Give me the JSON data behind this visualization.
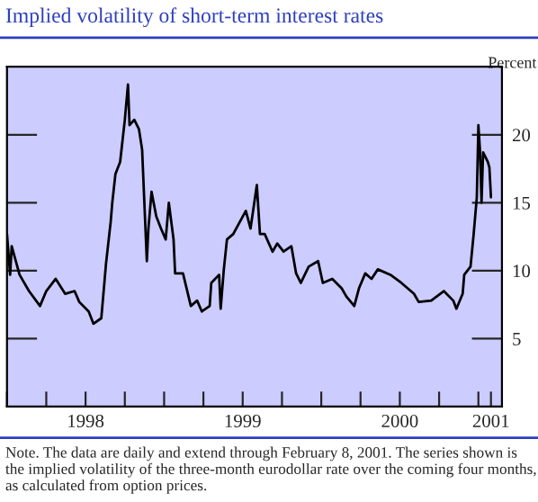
{
  "chart_data": {
    "type": "line",
    "title": "Implied volatility of short-term interest rates",
    "ylabel": "Percent",
    "annotations": [
      "Note. The data are daily and extend through February 8, 2001. The series shown is the implied volatility of the three-month eurodollar rate over the coming four months, as calculated from option prices."
    ],
    "series": [
      {
        "color": "#000000",
        "x": [
          1998.0,
          1998.02,
          1998.03,
          1998.08,
          1998.14,
          1998.21,
          1998.25,
          1998.31,
          1998.37,
          1998.43,
          1998.46,
          1998.52,
          1998.55,
          1998.6,
          1998.61,
          1998.63,
          1998.66,
          1998.67,
          1998.69,
          1998.72,
          1998.75,
          1998.77,
          1998.78,
          1998.81,
          1998.84,
          1998.86,
          1998.89,
          1998.9,
          1998.92,
          1998.95,
          1998.98,
          1999.01,
          1999.03,
          1999.06,
          1999.07,
          1999.12,
          1999.17,
          1999.21,
          1999.24,
          1999.29,
          1999.3,
          1999.35,
          1999.36,
          1999.38,
          1999.4,
          1999.44,
          1999.52,
          1999.55,
          1999.59,
          1999.61,
          1999.64,
          1999.69,
          1999.72,
          1999.76,
          1999.81,
          1999.84,
          1999.87,
          1999.92,
          1999.98,
          2000.01,
          2000.07,
          2000.13,
          2000.16,
          2000.21,
          2000.24,
          2000.28,
          2000.32,
          2000.36,
          2000.44,
          2000.51,
          2000.59,
          2000.62,
          2000.7,
          2000.78,
          2000.84,
          2000.86,
          2000.9,
          2000.91,
          2000.95,
          2000.97,
          2000.99,
          2001.0,
          2001.01,
          2001.02,
          2001.03,
          2001.06,
          2001.07,
          2001.08
        ],
        "values": [
          12.7,
          9.7,
          11.8,
          9.7,
          8.5,
          7.4,
          8.5,
          9.4,
          8.3,
          8.5,
          7.7,
          7.0,
          6.1,
          6.5,
          7.8,
          10.5,
          13.6,
          15.0,
          17.1,
          18.0,
          21.1,
          23.7,
          20.7,
          21.1,
          20.4,
          18.9,
          10.7,
          13.1,
          15.8,
          14.0,
          13.1,
          12.3,
          15.0,
          12.3,
          9.8,
          9.8,
          7.4,
          7.8,
          7.0,
          7.4,
          9.1,
          9.7,
          7.2,
          10.1,
          12.3,
          12.7,
          14.4,
          13.1,
          16.3,
          12.7,
          12.7,
          11.4,
          12.0,
          11.4,
          11.8,
          9.8,
          9.1,
          10.3,
          10.7,
          9.1,
          9.4,
          8.7,
          8.1,
          7.4,
          8.7,
          9.8,
          9.4,
          10.1,
          9.7,
          9.1,
          8.3,
          7.7,
          7.8,
          8.5,
          7.8,
          7.2,
          8.3,
          9.7,
          10.3,
          12.7,
          15.4,
          20.7,
          18.9,
          15.0,
          18.7,
          18.0,
          17.6,
          15.4
        ]
      }
    ],
    "xlim": [
      1998.0,
      2001.15
    ],
    "ylim": [
      0,
      25
    ],
    "xticks": [
      {
        "value": 1998.0,
        "label": null
      },
      {
        "value": 1998.25,
        "label": null
      },
      {
        "value": 1998.5,
        "label": "1998"
      },
      {
        "value": 1998.75,
        "label": null
      },
      {
        "value": 1999.0,
        "label": null
      },
      {
        "value": 1999.25,
        "label": null
      },
      {
        "value": 1999.5,
        "label": "1999"
      },
      {
        "value": 1999.75,
        "label": null
      },
      {
        "value": 2000.0,
        "label": null
      },
      {
        "value": 2000.25,
        "label": null
      },
      {
        "value": 2000.5,
        "label": "2000"
      },
      {
        "value": 2000.75,
        "label": null
      },
      {
        "value": 2001.0,
        "label": null
      },
      {
        "value": 2001.08,
        "label": "2001"
      }
    ],
    "yticks": [
      5,
      10,
      15,
      20
    ],
    "grid": false,
    "legend": false
  }
}
